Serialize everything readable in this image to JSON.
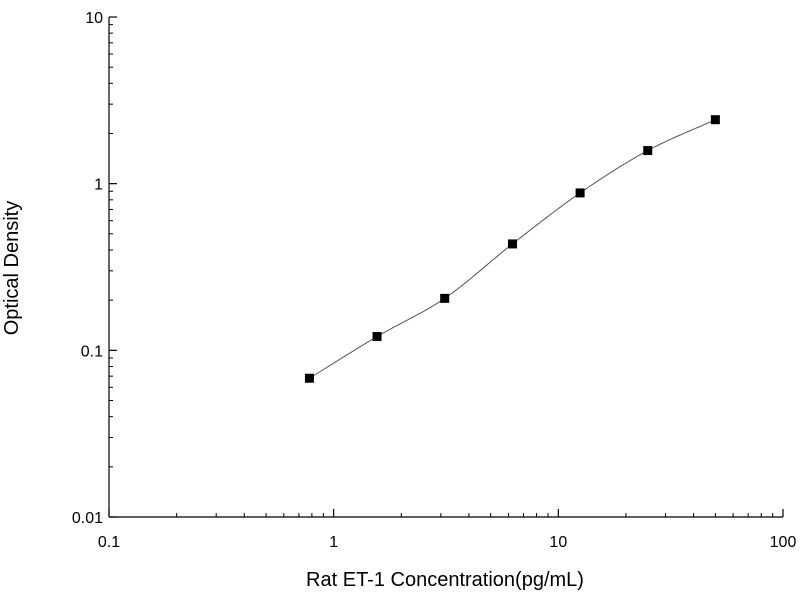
{
  "chart_data": {
    "type": "scatter",
    "title": "",
    "xlabel": "Rat ET-1 Concentration(pg/mL)",
    "ylabel": "Optical Density",
    "x_scale": "log",
    "y_scale": "log",
    "xlim": [
      0.1,
      100
    ],
    "ylim": [
      0.01,
      10
    ],
    "x_ticks": [
      {
        "value": 0.1,
        "label": "0.1"
      },
      {
        "value": 1,
        "label": "1"
      },
      {
        "value": 10,
        "label": "10"
      },
      {
        "value": 100,
        "label": "100"
      }
    ],
    "y_ticks": [
      {
        "value": 0.01,
        "label": "0.01"
      },
      {
        "value": 0.1,
        "label": "0.1"
      },
      {
        "value": 1,
        "label": "1"
      },
      {
        "value": 10,
        "label": "10"
      }
    ],
    "grid": false,
    "series": [
      {
        "marker": "square",
        "x": [
          0.78,
          1.56,
          3.12,
          6.25,
          12.5,
          25,
          50
        ],
        "y": [
          0.068,
          0.121,
          0.205,
          0.435,
          0.88,
          1.58,
          2.42
        ]
      }
    ],
    "fit_curve": true,
    "colors": {
      "marker": "#000000",
      "curve": "#555555",
      "axis": "#000000"
    }
  }
}
